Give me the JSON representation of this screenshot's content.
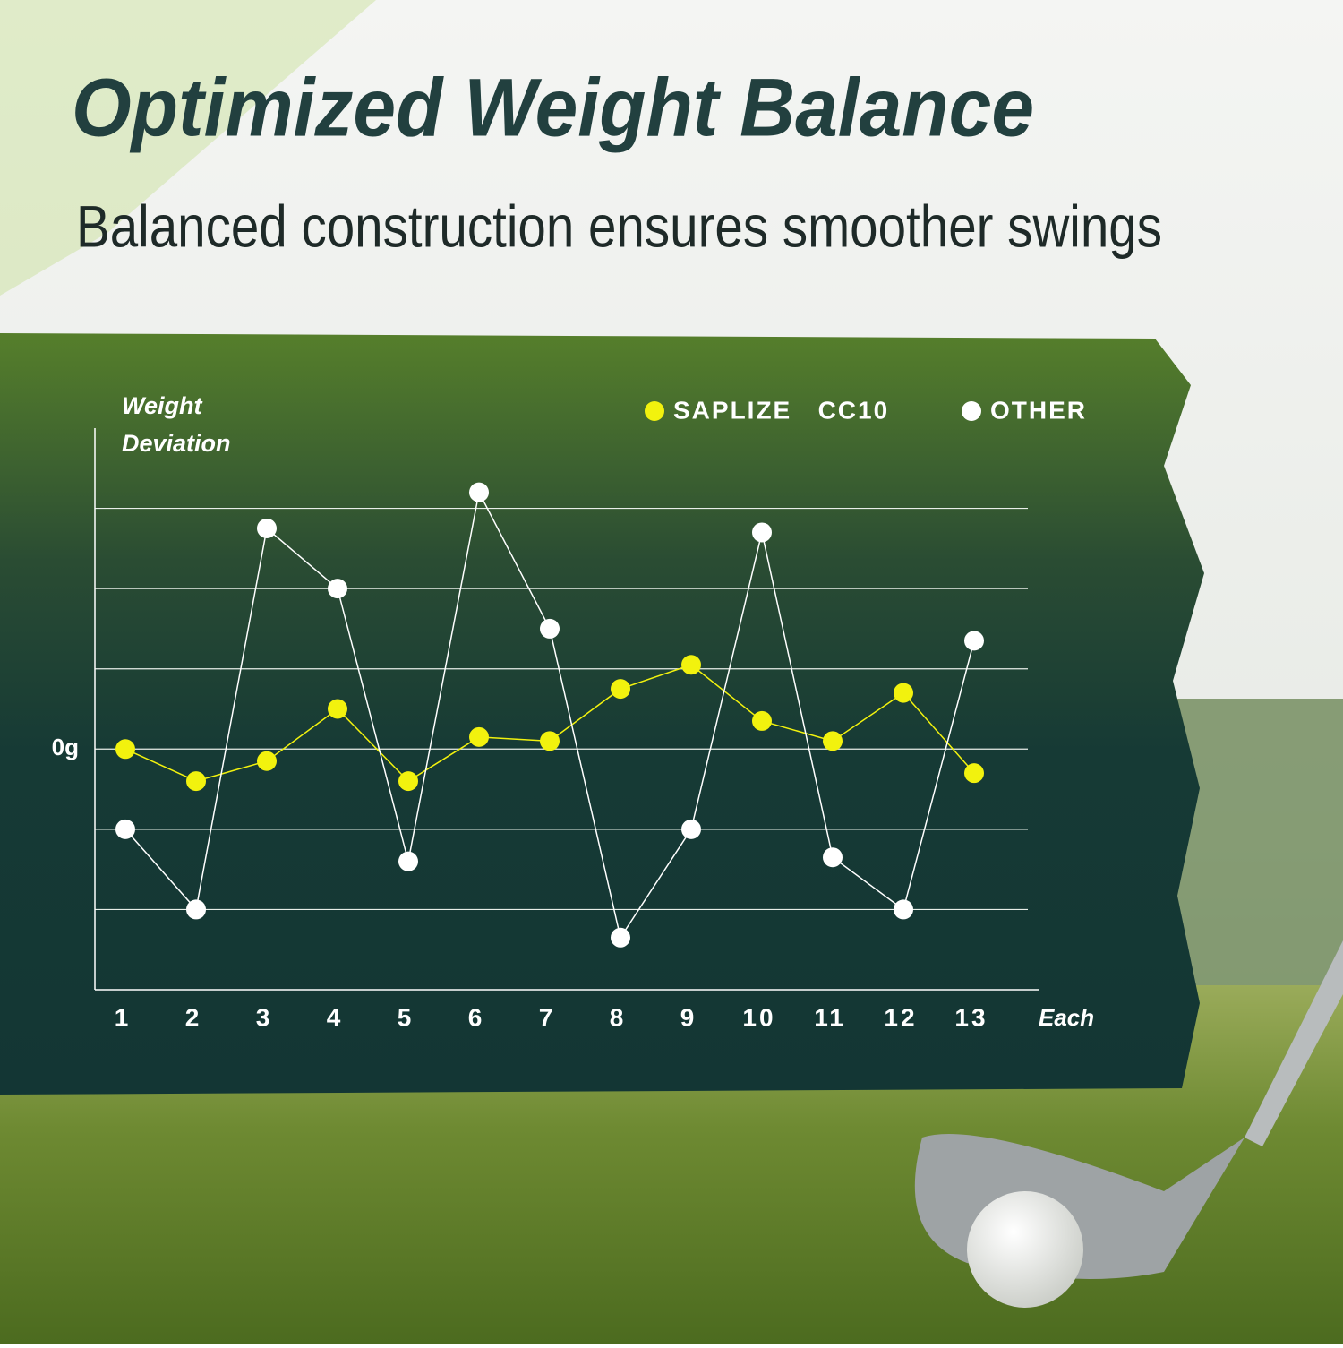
{
  "chart_data": {
    "type": "line",
    "title": "Optimized Weight Balance",
    "subtitle": "Balanced construction ensures smoother swings",
    "y_label": "Weight Deviation",
    "x_label": "Each",
    "categories": [
      "1",
      "2",
      "3",
      "4",
      "5",
      "6",
      "7",
      "8",
      "9",
      "10",
      "11",
      "12",
      "13"
    ],
    "series": [
      {
        "name": "SAPLIZE   CC10",
        "color": "#f2f20e",
        "values": [
          0,
          -0.4,
          -0.15,
          0.5,
          -0.4,
          0.15,
          0.1,
          0.75,
          1.05,
          0.35,
          0.1,
          0.7,
          -0.3
        ]
      },
      {
        "name": "OTHER",
        "color": "#ffffff",
        "values": [
          -1,
          -2,
          2.75,
          2,
          -1.4,
          3.2,
          1.5,
          -2.35,
          -1,
          2.7,
          -1.35,
          -2,
          1.35
        ]
      }
    ],
    "ylim": [
      -3,
      4
    ],
    "yticks": [
      {
        "value": 0,
        "label": "0g"
      }
    ],
    "ygridlines": [
      -2,
      -1,
      0,
      1,
      2,
      3
    ],
    "grid": true,
    "legend": "top-right"
  }
}
